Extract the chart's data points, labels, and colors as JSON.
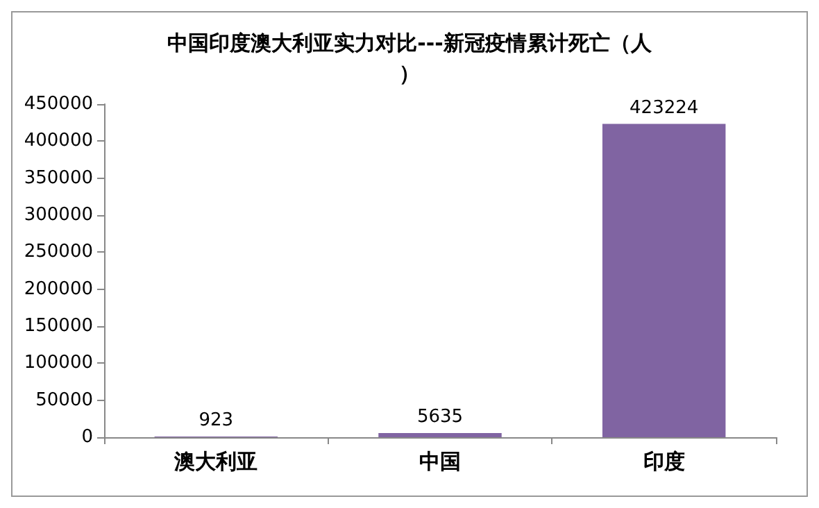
{
  "chart_data": {
    "type": "bar",
    "title": "中国印度澳大利亚实力对比---新冠疫情累计死亡（人）",
    "categories": [
      "澳大利亚",
      "中国",
      "印度"
    ],
    "values": [
      923,
      5635,
      423224
    ],
    "color": "#8064a2",
    "data_labels": true,
    "ylim": [
      0,
      450000
    ],
    "yticks": [
      0,
      50000,
      100000,
      150000,
      200000,
      250000,
      300000,
      350000,
      400000,
      450000
    ],
    "grid": false
  }
}
